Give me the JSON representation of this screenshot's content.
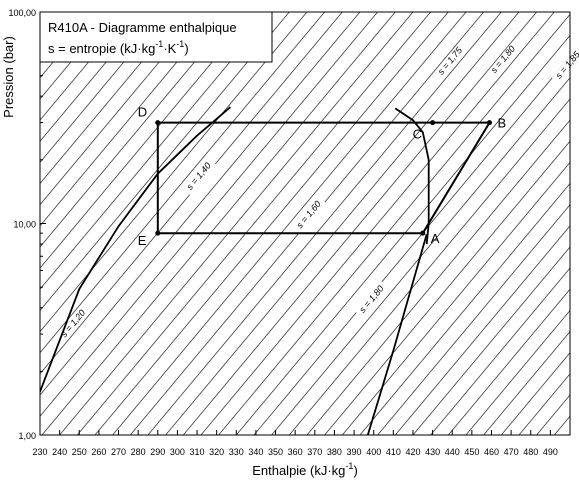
{
  "chart_data": {
    "type": "line",
    "title": "R410A - Diagramme enthalpique",
    "subtitle": {
      "prefix": "s = entropie (kJ·kg",
      "exp1": "-1",
      "mid": "·K",
      "exp2": "-1",
      "suffix": ")"
    },
    "xlabel": {
      "prefix": "Enthalpie (kJ·kg",
      "exp": "-1",
      "suffix": ")"
    },
    "ylabel": "Pression (bar)",
    "xlim": [
      230,
      500
    ],
    "ylim": [
      1,
      100
    ],
    "y_scale": "log",
    "grid": false,
    "x_ticks": [
      230,
      240,
      250,
      260,
      270,
      280,
      290,
      300,
      310,
      320,
      330,
      340,
      350,
      360,
      370,
      380,
      390,
      400,
      410,
      420,
      430,
      440,
      450,
      460,
      470,
      480,
      490
    ],
    "y_tick_labels": [
      {
        "value": 1,
        "label": "1,00"
      },
      {
        "value": 10,
        "label": "10,00"
      },
      {
        "value": 100,
        "label": "100,00"
      }
    ],
    "saturation_liquid": [
      [
        230,
        1.6
      ],
      [
        250,
        4.9
      ],
      [
        270,
        9.7
      ],
      [
        290,
        17.2
      ],
      [
        310,
        26.0
      ],
      [
        327,
        35.5
      ]
    ],
    "saturation_vapor": [
      [
        411,
        35.0
      ],
      [
        420,
        30.8
      ],
      [
        425,
        27.0
      ],
      [
        428,
        20.0
      ],
      [
        428,
        10.0
      ],
      [
        427,
        8.0
      ]
    ],
    "compression_line": [
      [
        397,
        1.0
      ],
      [
        410,
        2.5
      ],
      [
        427,
        8.9
      ]
    ],
    "isentropes": {
      "slope_h_per_decade": 90,
      "step_h_at_10bar": 9.0,
      "label_texts": [
        "s = 1,20",
        "s = 1,40",
        "s = 1,60",
        "s = 1,80",
        "s = 1,75",
        "s = 1,80",
        "s = 1,85"
      ]
    },
    "cycle": {
      "path": [
        "A",
        "B",
        "C",
        "D",
        "E",
        "A"
      ],
      "points": [
        {
          "name": "A",
          "h": 425,
          "p": 9.0
        },
        {
          "name": "B",
          "h": 459,
          "p": 30.0
        },
        {
          "name": "C",
          "h": 430,
          "p": 30.0
        },
        {
          "name": "D",
          "h": 290,
          "p": 30.0
        },
        {
          "name": "E",
          "h": 290,
          "p": 9.0
        }
      ]
    }
  }
}
